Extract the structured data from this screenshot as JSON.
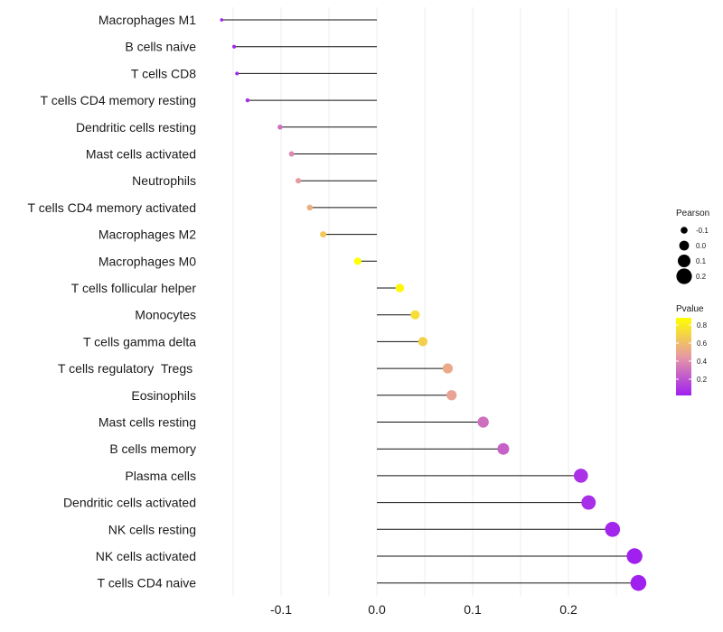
{
  "chart_data": {
    "type": "lollipop",
    "x_ticks": [
      -0.1,
      0.0,
      0.1,
      0.2
    ],
    "x_tick_labels": [
      "-0.1",
      "0.0",
      "0.1",
      "0.2"
    ],
    "xlim": [
      -0.172,
      0.285
    ],
    "points": [
      {
        "label": "Macrophages M1",
        "pearson": -0.162,
        "pvalue": 0.02
      },
      {
        "label": "B cells naive",
        "pearson": -0.149,
        "pvalue": 0.04
      },
      {
        "label": "T cells CD8",
        "pearson": -0.146,
        "pvalue": 0.05
      },
      {
        "label": "T cells CD4 memory resting",
        "pearson": -0.135,
        "pvalue": 0.08
      },
      {
        "label": "Dendritic cells resting",
        "pearson": -0.101,
        "pvalue": 0.3
      },
      {
        "label": "Mast cells activated",
        "pearson": -0.089,
        "pvalue": 0.39
      },
      {
        "label": "Neutrophils",
        "pearson": -0.082,
        "pvalue": 0.45
      },
      {
        "label": "T cells CD4 memory activated",
        "pearson": -0.07,
        "pvalue": 0.54
      },
      {
        "label": "Macrophages M2",
        "pearson": -0.056,
        "pvalue": 0.65
      },
      {
        "label": "Macrophages M0",
        "pearson": -0.02,
        "pvalue": 0.88
      },
      {
        "label": "T cells follicular helper",
        "pearson": 0.024,
        "pvalue": 0.85
      },
      {
        "label": "Monocytes",
        "pearson": 0.04,
        "pvalue": 0.74
      },
      {
        "label": "T cells gamma delta",
        "pearson": 0.048,
        "pvalue": 0.68
      },
      {
        "label": "T cells regulatory  Tregs ",
        "pearson": 0.074,
        "pvalue": 0.52
      },
      {
        "label": "Eosinophils",
        "pearson": 0.078,
        "pvalue": 0.49
      },
      {
        "label": "Mast cells resting",
        "pearson": 0.111,
        "pvalue": 0.3
      },
      {
        "label": "B cells memory",
        "pearson": 0.132,
        "pvalue": 0.25
      },
      {
        "label": "Plasma cells",
        "pearson": 0.213,
        "pvalue": 0.08
      },
      {
        "label": "Dendritic cells activated",
        "pearson": 0.221,
        "pvalue": 0.07
      },
      {
        "label": "NK cells resting",
        "pearson": 0.246,
        "pvalue": 0.04
      },
      {
        "label": "NK cells activated",
        "pearson": 0.269,
        "pvalue": 0.02
      },
      {
        "label": "T cells CD4 naive",
        "pearson": 0.273,
        "pvalue": 0.02
      }
    ],
    "size_legend": {
      "title": "Pearson",
      "values": [
        -0.1,
        0.0,
        0.1,
        0.2
      ],
      "labels": [
        "-0.1",
        "0.0",
        "0.1",
        "0.2"
      ]
    },
    "color_legend": {
      "title": "Pvalue",
      "range": [
        0.02,
        0.88
      ],
      "ticks": [
        0.2,
        0.4,
        0.6,
        0.8
      ],
      "tick_labels": [
        "0.2",
        "0.4",
        "0.6",
        "0.8"
      ],
      "low_color": "#a020f0",
      "high_color": "#ffff00"
    }
  }
}
